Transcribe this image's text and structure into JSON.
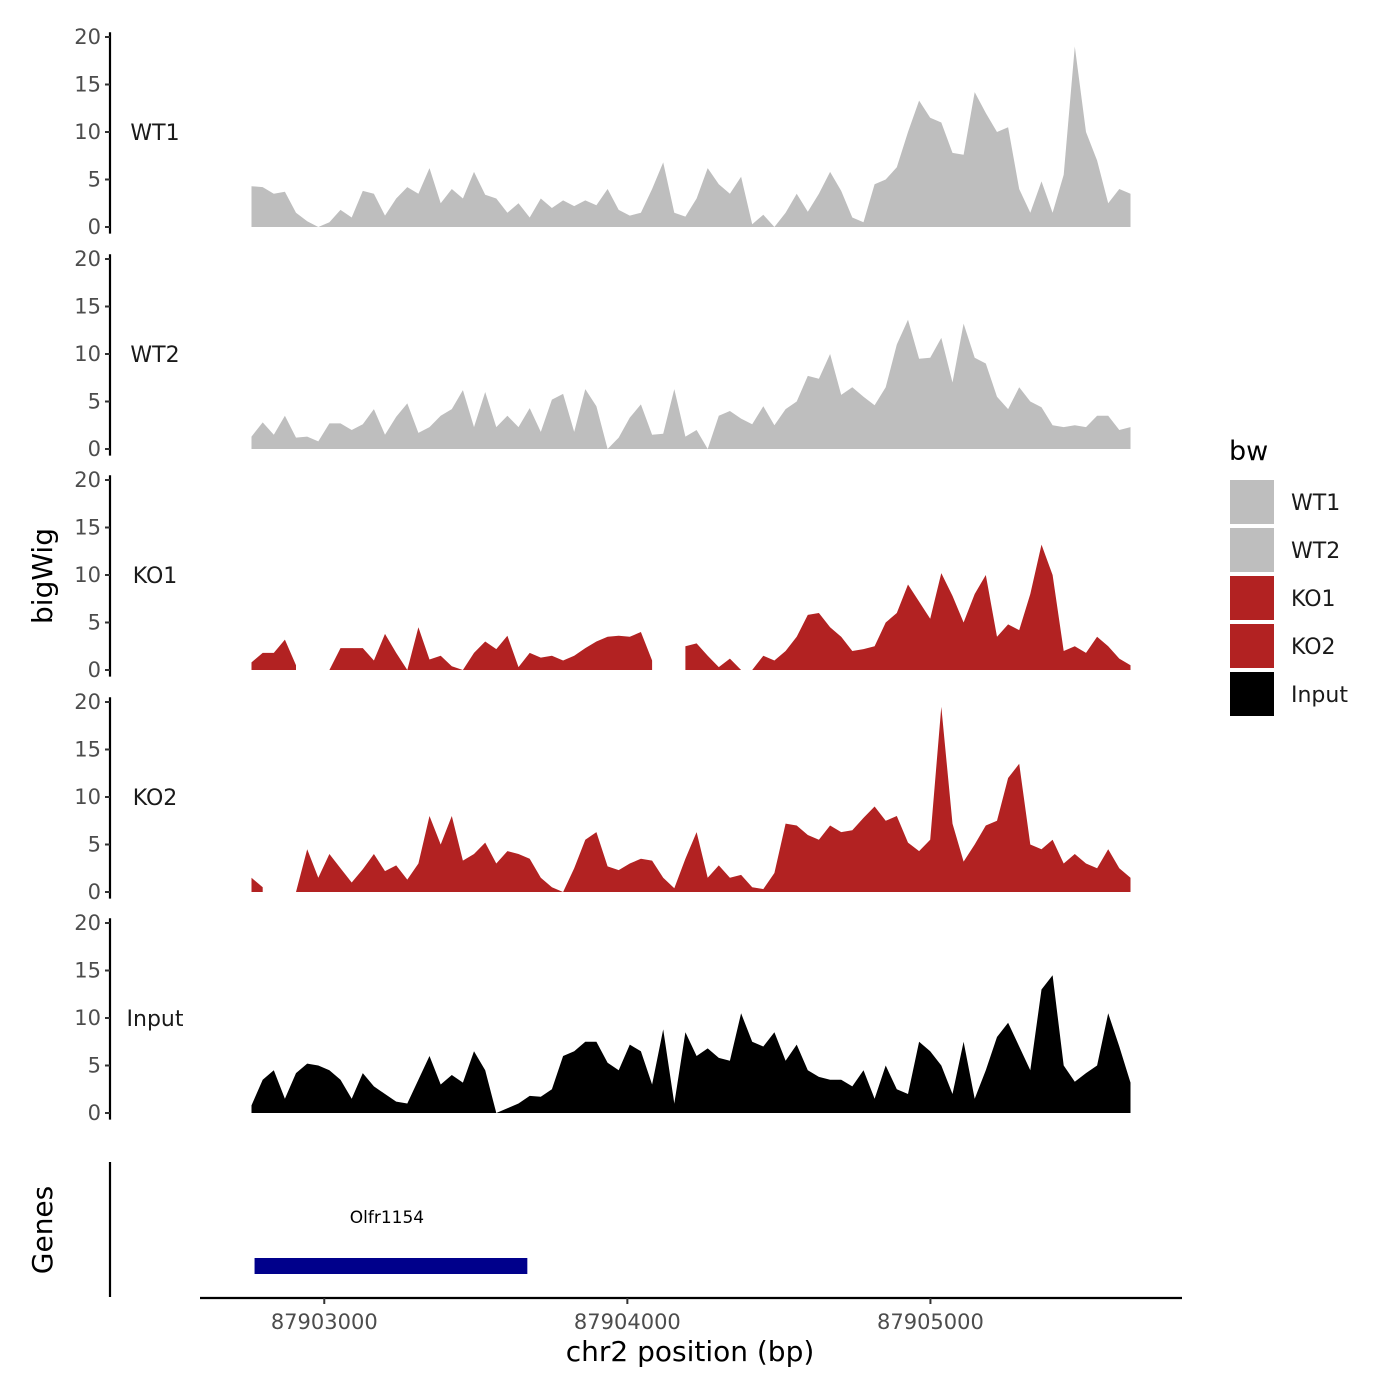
{
  "chart_data": {
    "type": "area",
    "y_axis_title": "bigWig",
    "x_axis_title": "chr2 position (bp)",
    "x_ticks": [
      87903000,
      87904000,
      87905000
    ],
    "x_tick_labels": [
      "87903000",
      "87904000",
      "87905000"
    ],
    "xlim": [
      87902590,
      87905830
    ],
    "data_range": [
      87902760,
      87905660
    ],
    "ylim": [
      0,
      20
    ],
    "y_ticks": [
      0,
      5,
      10,
      15,
      20
    ],
    "y_tick_labels": [
      "0",
      "5",
      "10",
      "15",
      "20"
    ],
    "legend": {
      "title": "bw",
      "position": "right",
      "entries": [
        {
          "label": "WT1",
          "color": "#bebebe"
        },
        {
          "label": "WT2",
          "color": "#bebebe"
        },
        {
          "label": "KO1",
          "color": "#b22222"
        },
        {
          "label": "KO2",
          "color": "#b22222"
        },
        {
          "label": "Input",
          "color": "#000000"
        }
      ]
    },
    "series": [
      {
        "name": "WT1",
        "color": "#bebebe",
        "values": [
          4.3,
          4.2,
          3.5,
          3.7,
          1.5,
          0.6,
          0,
          0.5,
          1.8,
          1.0,
          3.8,
          3.5,
          1.2,
          3.0,
          4.2,
          3.5,
          6.2,
          2.5,
          4.0,
          3.0,
          5.8,
          3.4,
          3.0,
          1.5,
          2.5,
          1.0,
          3.0,
          2.0,
          2.8,
          2.2,
          2.8,
          2.3,
          4.0,
          1.8,
          1.2,
          1.5,
          4.0,
          6.8,
          1.5,
          1.1,
          3.0,
          6.2,
          4.5,
          3.5,
          5.3,
          0.3,
          1.3,
          0,
          1.5,
          3.5,
          1.6,
          3.5,
          5.8,
          3.8,
          1.0,
          0.5,
          4.5,
          5.0,
          6.3,
          10.0,
          13.3,
          11.5,
          11.0,
          7.8,
          7.6,
          14.2,
          12.0,
          10.0,
          10.5,
          4.0,
          1.5,
          4.8,
          1.5,
          5.5,
          19.0,
          10.0,
          7.0,
          2.5,
          4.0,
          3.5
        ]
      },
      {
        "name": "WT2",
        "color": "#bebebe",
        "values": [
          1.3,
          2.8,
          1.5,
          3.5,
          1.2,
          1.3,
          0.8,
          2.7,
          2.7,
          2.0,
          2.6,
          4.2,
          1.5,
          3.4,
          4.8,
          1.7,
          2.3,
          3.5,
          4.2,
          6.2,
          2.3,
          6.0,
          2.3,
          3.5,
          2.3,
          4.3,
          1.8,
          5.2,
          5.8,
          1.8,
          6.3,
          4.5,
          0,
          1.2,
          3.3,
          4.7,
          1.5,
          1.6,
          6.3,
          1.3,
          2.0,
          0,
          3.5,
          4.0,
          3.2,
          2.6,
          4.5,
          2.5,
          4.2,
          5.0,
          7.7,
          7.4,
          10.0,
          5.7,
          6.5,
          5.5,
          4.6,
          6.5,
          11.0,
          13.6,
          9.5,
          9.6,
          11.7,
          7.0,
          13.2,
          9.6,
          9.0,
          5.5,
          4.2,
          6.5,
          5.0,
          4.4,
          2.5,
          2.3,
          2.5,
          2.3,
          3.5,
          3.5,
          2.0,
          2.3
        ]
      },
      {
        "name": "KO1",
        "color": "#b22222",
        "values": [
          0.8,
          1.8,
          1.8,
          3.2,
          0.5,
          null,
          null,
          0,
          2.3,
          2.3,
          2.3,
          1.0,
          3.8,
          1.8,
          0,
          4.5,
          1.1,
          1.5,
          0.4,
          0,
          1.8,
          3.0,
          2.2,
          3.6,
          0.3,
          1.8,
          1.3,
          1.5,
          1.0,
          1.5,
          2.3,
          3.0,
          3.5,
          3.6,
          3.5,
          4.0,
          1.0,
          null,
          null,
          2.5,
          2.8,
          1.5,
          0.3,
          1.2,
          0,
          0,
          1.5,
          1.0,
          2.0,
          3.5,
          5.8,
          6.0,
          4.5,
          3.5,
          2.0,
          2.2,
          2.5,
          5.0,
          6.0,
          9.0,
          7.2,
          5.4,
          10.2,
          7.8,
          5.0,
          8.0,
          10.0,
          3.5,
          4.8,
          4.2,
          8.0,
          13.2,
          10.0,
          2.0,
          2.5,
          1.8,
          3.5,
          2.5,
          1.2,
          0.5
        ]
      },
      {
        "name": "KO2",
        "color": "#b22222",
        "values": [
          1.5,
          0.5,
          null,
          0,
          0,
          4.5,
          1.5,
          4.0,
          2.5,
          1.0,
          2.4,
          4.0,
          2.2,
          2.8,
          1.3,
          3.0,
          8.0,
          5.0,
          8.0,
          3.3,
          4.0,
          5.2,
          3.0,
          4.3,
          4.0,
          3.5,
          1.5,
          0.5,
          0,
          2.5,
          5.5,
          6.3,
          2.7,
          2.3,
          3.0,
          3.5,
          3.3,
          1.5,
          0.4,
          3.5,
          6.3,
          1.5,
          2.8,
          1.5,
          1.8,
          0.5,
          0.3,
          2.0,
          7.2,
          7.0,
          6.0,
          5.5,
          7.0,
          6.3,
          6.5,
          7.8,
          9.0,
          7.5,
          8.0,
          5.2,
          4.3,
          5.5,
          19.5,
          7.2,
          3.2,
          5.0,
          7.0,
          7.5,
          12.0,
          13.5,
          5.0,
          4.5,
          5.5,
          3.0,
          4.0,
          3.0,
          2.5,
          4.5,
          2.5,
          1.5
        ]
      },
      {
        "name": "Input",
        "color": "#000000",
        "values": [
          0.8,
          3.5,
          4.5,
          1.5,
          4.2,
          5.2,
          5.0,
          4.5,
          3.5,
          1.5,
          4.2,
          2.8,
          2.0,
          1.2,
          1.0,
          3.5,
          6.0,
          3.0,
          4.0,
          3.2,
          6.5,
          4.5,
          0,
          0.5,
          1.0,
          1.8,
          1.7,
          2.5,
          6.0,
          6.5,
          7.5,
          7.5,
          5.3,
          4.5,
          7.2,
          6.5,
          3.0,
          8.8,
          1.0,
          8.5,
          6.0,
          6.8,
          5.8,
          5.5,
          10.5,
          7.5,
          7.0,
          8.5,
          5.5,
          7.2,
          4.5,
          3.8,
          3.5,
          3.5,
          2.8,
          4.5,
          1.5,
          5.0,
          2.5,
          2.0,
          7.5,
          6.5,
          5.0,
          2.0,
          7.5,
          1.5,
          4.5,
          8.0,
          9.5,
          7.0,
          4.5,
          13.0,
          14.5,
          5.0,
          3.3,
          4.2,
          5.0,
          10.5,
          7.0,
          3.2
        ]
      }
    ],
    "genes": {
      "track_label": "Genes",
      "items": [
        {
          "name": "Olfr1154",
          "start": 87902770,
          "end": 87903670,
          "color": "#00008b"
        }
      ]
    }
  }
}
